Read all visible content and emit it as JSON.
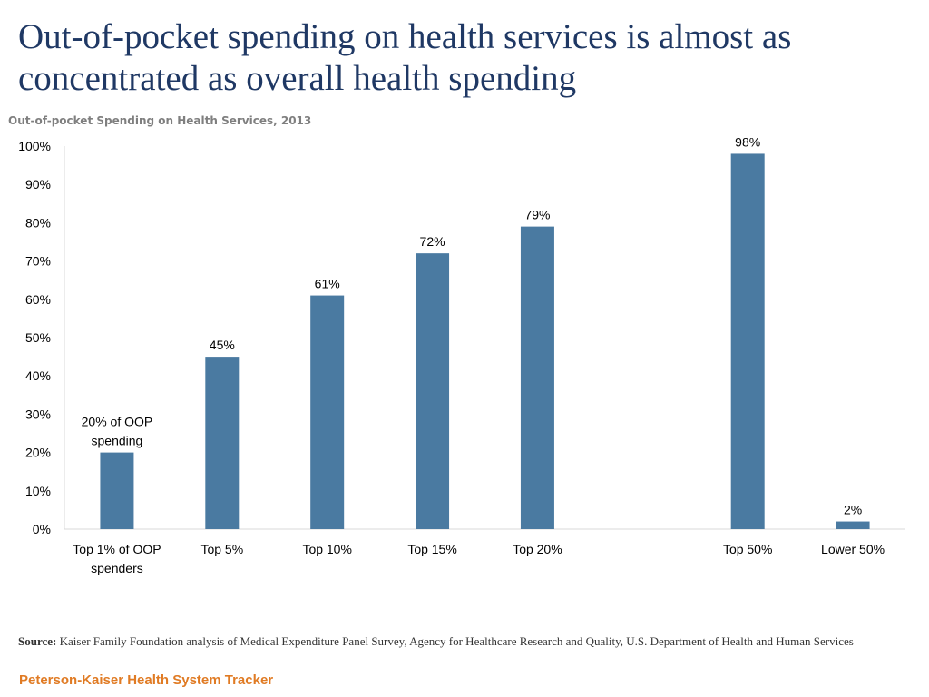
{
  "title": "Out-of-pocket spending on health services is almost as concentrated as overall health spending",
  "source": {
    "label": "Source:",
    "text": "Kaiser Family Foundation analysis of Medical Expenditure Panel Survey, Agency for Healthcare Research and Quality, U.S. Department of Health and Human Services"
  },
  "brand": "Peterson-Kaiser Health System Tracker",
  "colors": {
    "bar": "#4a7aa1",
    "title": "#1f3864",
    "brand": "#e07b24"
  },
  "chart_data": {
    "type": "bar",
    "title": "Out-of-pocket Spending on Health Services, 2013",
    "xlabel": "",
    "ylabel": "",
    "ylim": [
      0,
      100
    ],
    "yticks": [
      "0%",
      "10%",
      "20%",
      "30%",
      "40%",
      "50%",
      "60%",
      "70%",
      "80%",
      "90%",
      "100%"
    ],
    "categories": [
      [
        "Top 1% of OOP",
        "spenders"
      ],
      [
        "Top 5%"
      ],
      [
        "Top 10%"
      ],
      [
        "Top 15%"
      ],
      [
        "Top 20%"
      ],
      [
        ""
      ],
      [
        "Top 50%"
      ],
      [
        "Lower 50%"
      ]
    ],
    "values": [
      20,
      45,
      61,
      72,
      79,
      null,
      98,
      2
    ],
    "data_labels": [
      [
        "20% of OOP",
        "spending"
      ],
      [
        "45%"
      ],
      [
        "61%"
      ],
      [
        "72%"
      ],
      [
        "79%"
      ],
      [
        ""
      ],
      [
        "98%"
      ],
      [
        "2%"
      ]
    ]
  }
}
